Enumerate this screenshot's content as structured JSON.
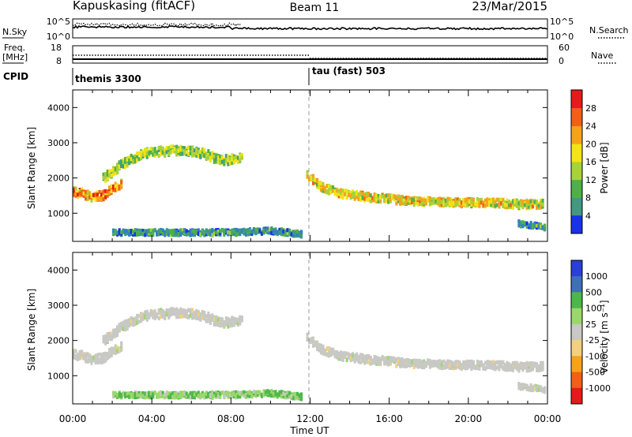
{
  "header": {
    "title": "Kapuskasing (fitACF)",
    "beam": "Beam 11",
    "date": "23/Mar/2015"
  },
  "strip": {
    "nsky_label": "N.Sky",
    "nsky_ticks": [
      "10^5",
      "10^0"
    ],
    "nsearch_ticks": [
      "10^5",
      "10^0"
    ],
    "nsearch_label": "N.Search",
    "freq_label_line1": "Freq.",
    "freq_label_line2": "[MHz]",
    "freq_ticks": [
      "18",
      "8"
    ],
    "nave_ticks": [
      "60",
      "0"
    ],
    "nave_label": "Nave",
    "cpid_label": "CPID",
    "cpid_segments": [
      "themis 3300",
      "tau (fast) 503"
    ]
  },
  "colors": {
    "power_scale": [
      "#1a32e6",
      "#2f7fc7",
      "#3f9a80",
      "#4fb04a",
      "#a8d23a",
      "#f2e418",
      "#f7a21c",
      "#f06018",
      "#e51a1a"
    ],
    "velocity_scale": [
      "#e51a1a",
      "#f06018",
      "#f7a21c",
      "#f2d080",
      "#c8c8c4",
      "#9ad86a",
      "#4cb848",
      "#3f6fb8",
      "#2a3fd6"
    ],
    "ground_scatter": "#c8c8c4"
  },
  "panels": {
    "power": {
      "ylabel": "Slant Range [km]",
      "cbar_label": "Power [dB]",
      "cbar_ticks": [
        "28",
        "24",
        "20",
        "16",
        "12",
        "8",
        "4"
      ]
    },
    "velocity": {
      "ylabel": "Slant Range [km]",
      "cbar_label": "Velocity  [m s⁻¹]",
      "cbar_ticks": [
        "1000",
        "500",
        "100",
        "25",
        "-25",
        "-100",
        "-500",
        "-1000"
      ]
    },
    "yticks": [
      "4000",
      "3000",
      "2000",
      "1000"
    ],
    "xticks": [
      "00:00",
      "04:00",
      "08:00",
      "12:00",
      "16:00",
      "20:00",
      "00:00"
    ],
    "xlabel": "Time UT"
  },
  "chart_data": {
    "type": "heatmap",
    "x_unit": "hours UT",
    "xlim": [
      0,
      24
    ],
    "ylim": [
      200,
      4500
    ],
    "power_range_db": [
      0,
      30
    ],
    "velocity_range_ms": [
      -1000,
      1000
    ],
    "cpid_change_hour": 12,
    "features": [
      {
        "name": "band_A",
        "t": [
          0.0,
          0.5,
          1.0,
          1.5,
          2.0,
          2.5
        ],
        "range_km": [
          1600,
          1550,
          1450,
          1500,
          1700,
          1900
        ],
        "width_km": 250,
        "power_db": 22,
        "velocity_ms": 0,
        "ground_scatter": true
      },
      {
        "name": "band_B",
        "t": [
          1.5,
          2.5,
          3.5,
          4.5,
          5.5,
          6.5,
          7.5,
          8.5
        ],
        "range_km": [
          2000,
          2400,
          2700,
          2750,
          2800,
          2700,
          2500,
          2550
        ],
        "width_km": 250,
        "power_db": 14,
        "velocity_ms": 0,
        "ground_scatter": true
      },
      {
        "name": "band_C",
        "t": [
          11.8,
          12.5,
          13.5,
          15.0,
          17.0,
          19.0,
          21.0,
          22.5,
          23.8
        ],
        "range_km": [
          2100,
          1750,
          1550,
          1450,
          1350,
          1300,
          1300,
          1250,
          1250
        ],
        "width_km": 220,
        "power_db": 18,
        "velocity_ms": 0,
        "ground_scatter": true
      },
      {
        "name": "near_range",
        "t": [
          2.0,
          4.0,
          6.0,
          8.0,
          10.0,
          11.5
        ],
        "range_km": [
          450,
          450,
          450,
          450,
          500,
          400
        ],
        "width_km": 150,
        "power_db": 8,
        "velocity_ms": 80,
        "ground_scatter": false
      },
      {
        "name": "late_low",
        "t": [
          22.5,
          23.2,
          23.9
        ],
        "range_km": [
          700,
          650,
          600
        ],
        "width_km": 150,
        "power_db": 8,
        "velocity_ms": 0,
        "ground_scatter": true
      }
    ]
  }
}
